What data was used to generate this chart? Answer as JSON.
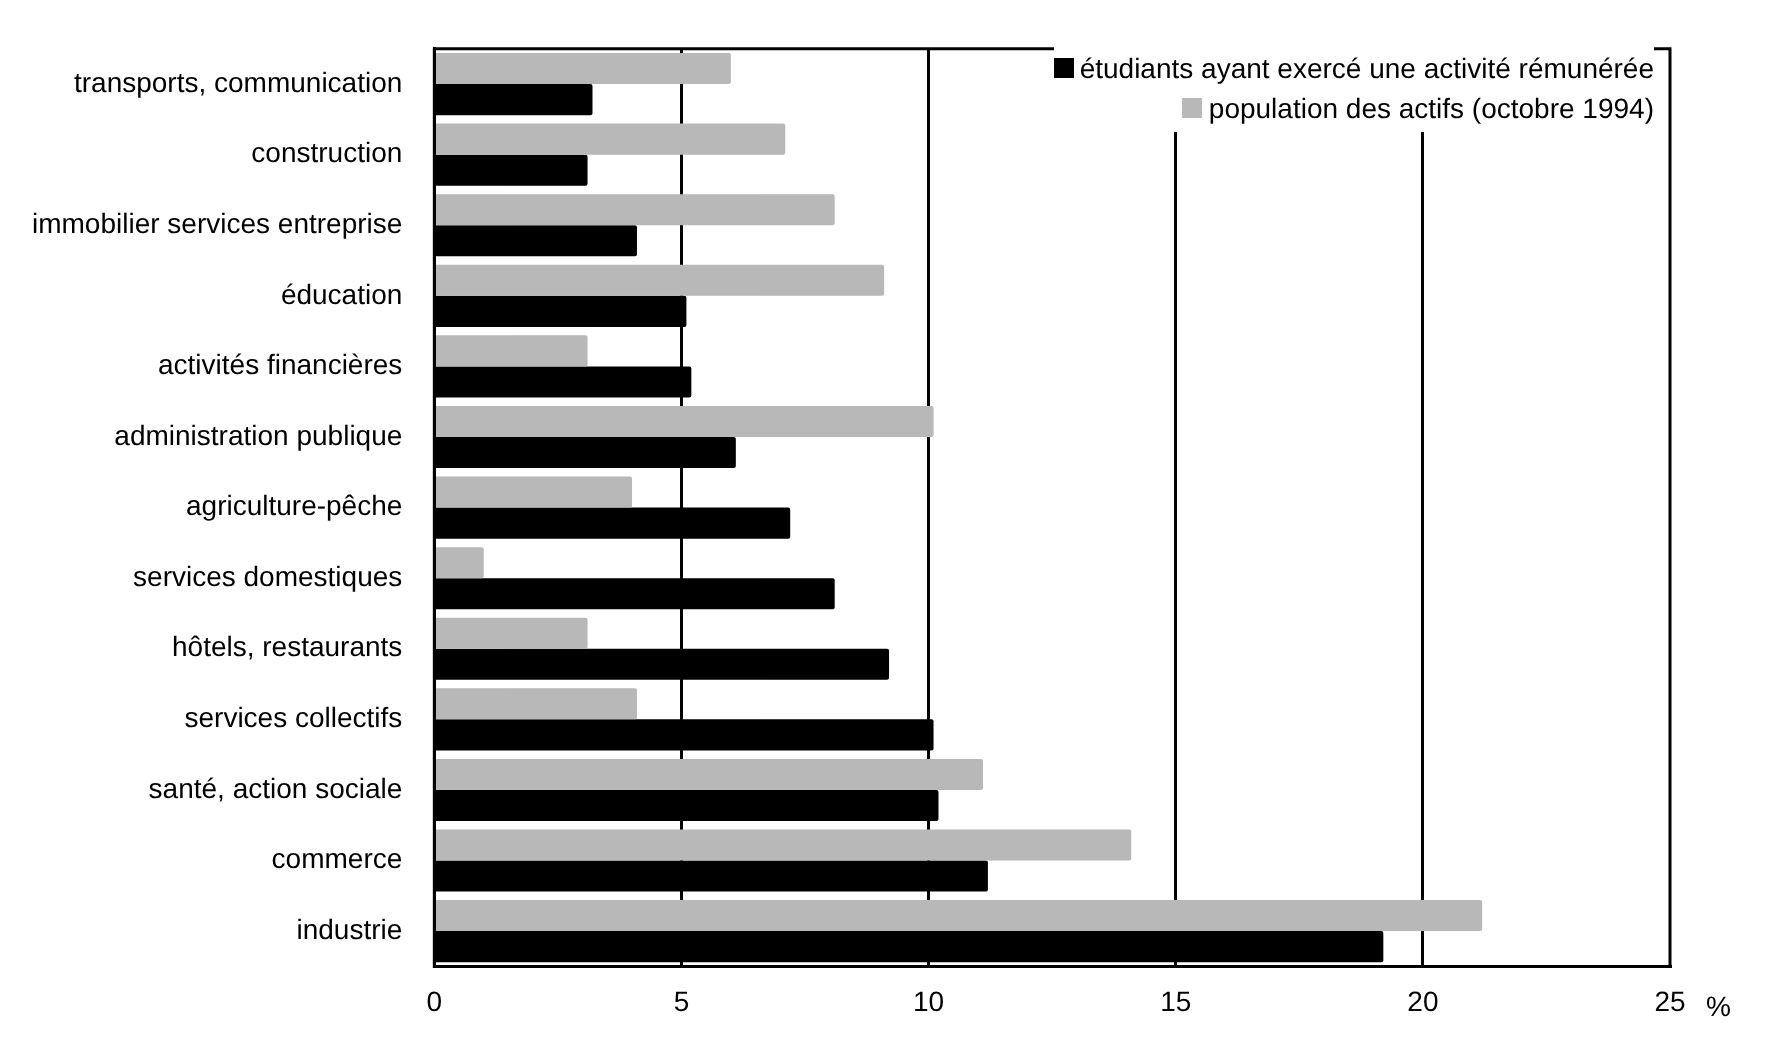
{
  "chart_data": {
    "type": "bar",
    "orientation": "horizontal",
    "xlabel": "%",
    "categories": [
      "transports, communication",
      "construction",
      "immobilier services entreprise",
      "éducation",
      "activités financières",
      "administration publique",
      "agriculture-pêche",
      "services domestiques",
      "hôtels, restaurants",
      "services collectifs",
      "santé, action sociale",
      "commerce",
      "industrie"
    ],
    "series": [
      {
        "name": "étudiants ayant exercé une activité rémunérée",
        "color": "#000000",
        "values": [
          3.2,
          3.1,
          4.1,
          5.1,
          5.2,
          6.1,
          7.2,
          8.1,
          9.2,
          10.1,
          10.2,
          11.2,
          19.2
        ]
      },
      {
        "name": "population des actifs (octobre 1994)",
        "color": "#b8b8b8",
        "values": [
          6.0,
          7.1,
          8.1,
          9.1,
          3.1,
          10.1,
          4.0,
          1.0,
          3.1,
          4.1,
          11.1,
          14.1,
          21.2
        ]
      }
    ],
    "xlim": [
      0,
      25
    ],
    "xticks": [
      0,
      5,
      10,
      15,
      20,
      25
    ],
    "grid": "x",
    "legend": "top right"
  }
}
